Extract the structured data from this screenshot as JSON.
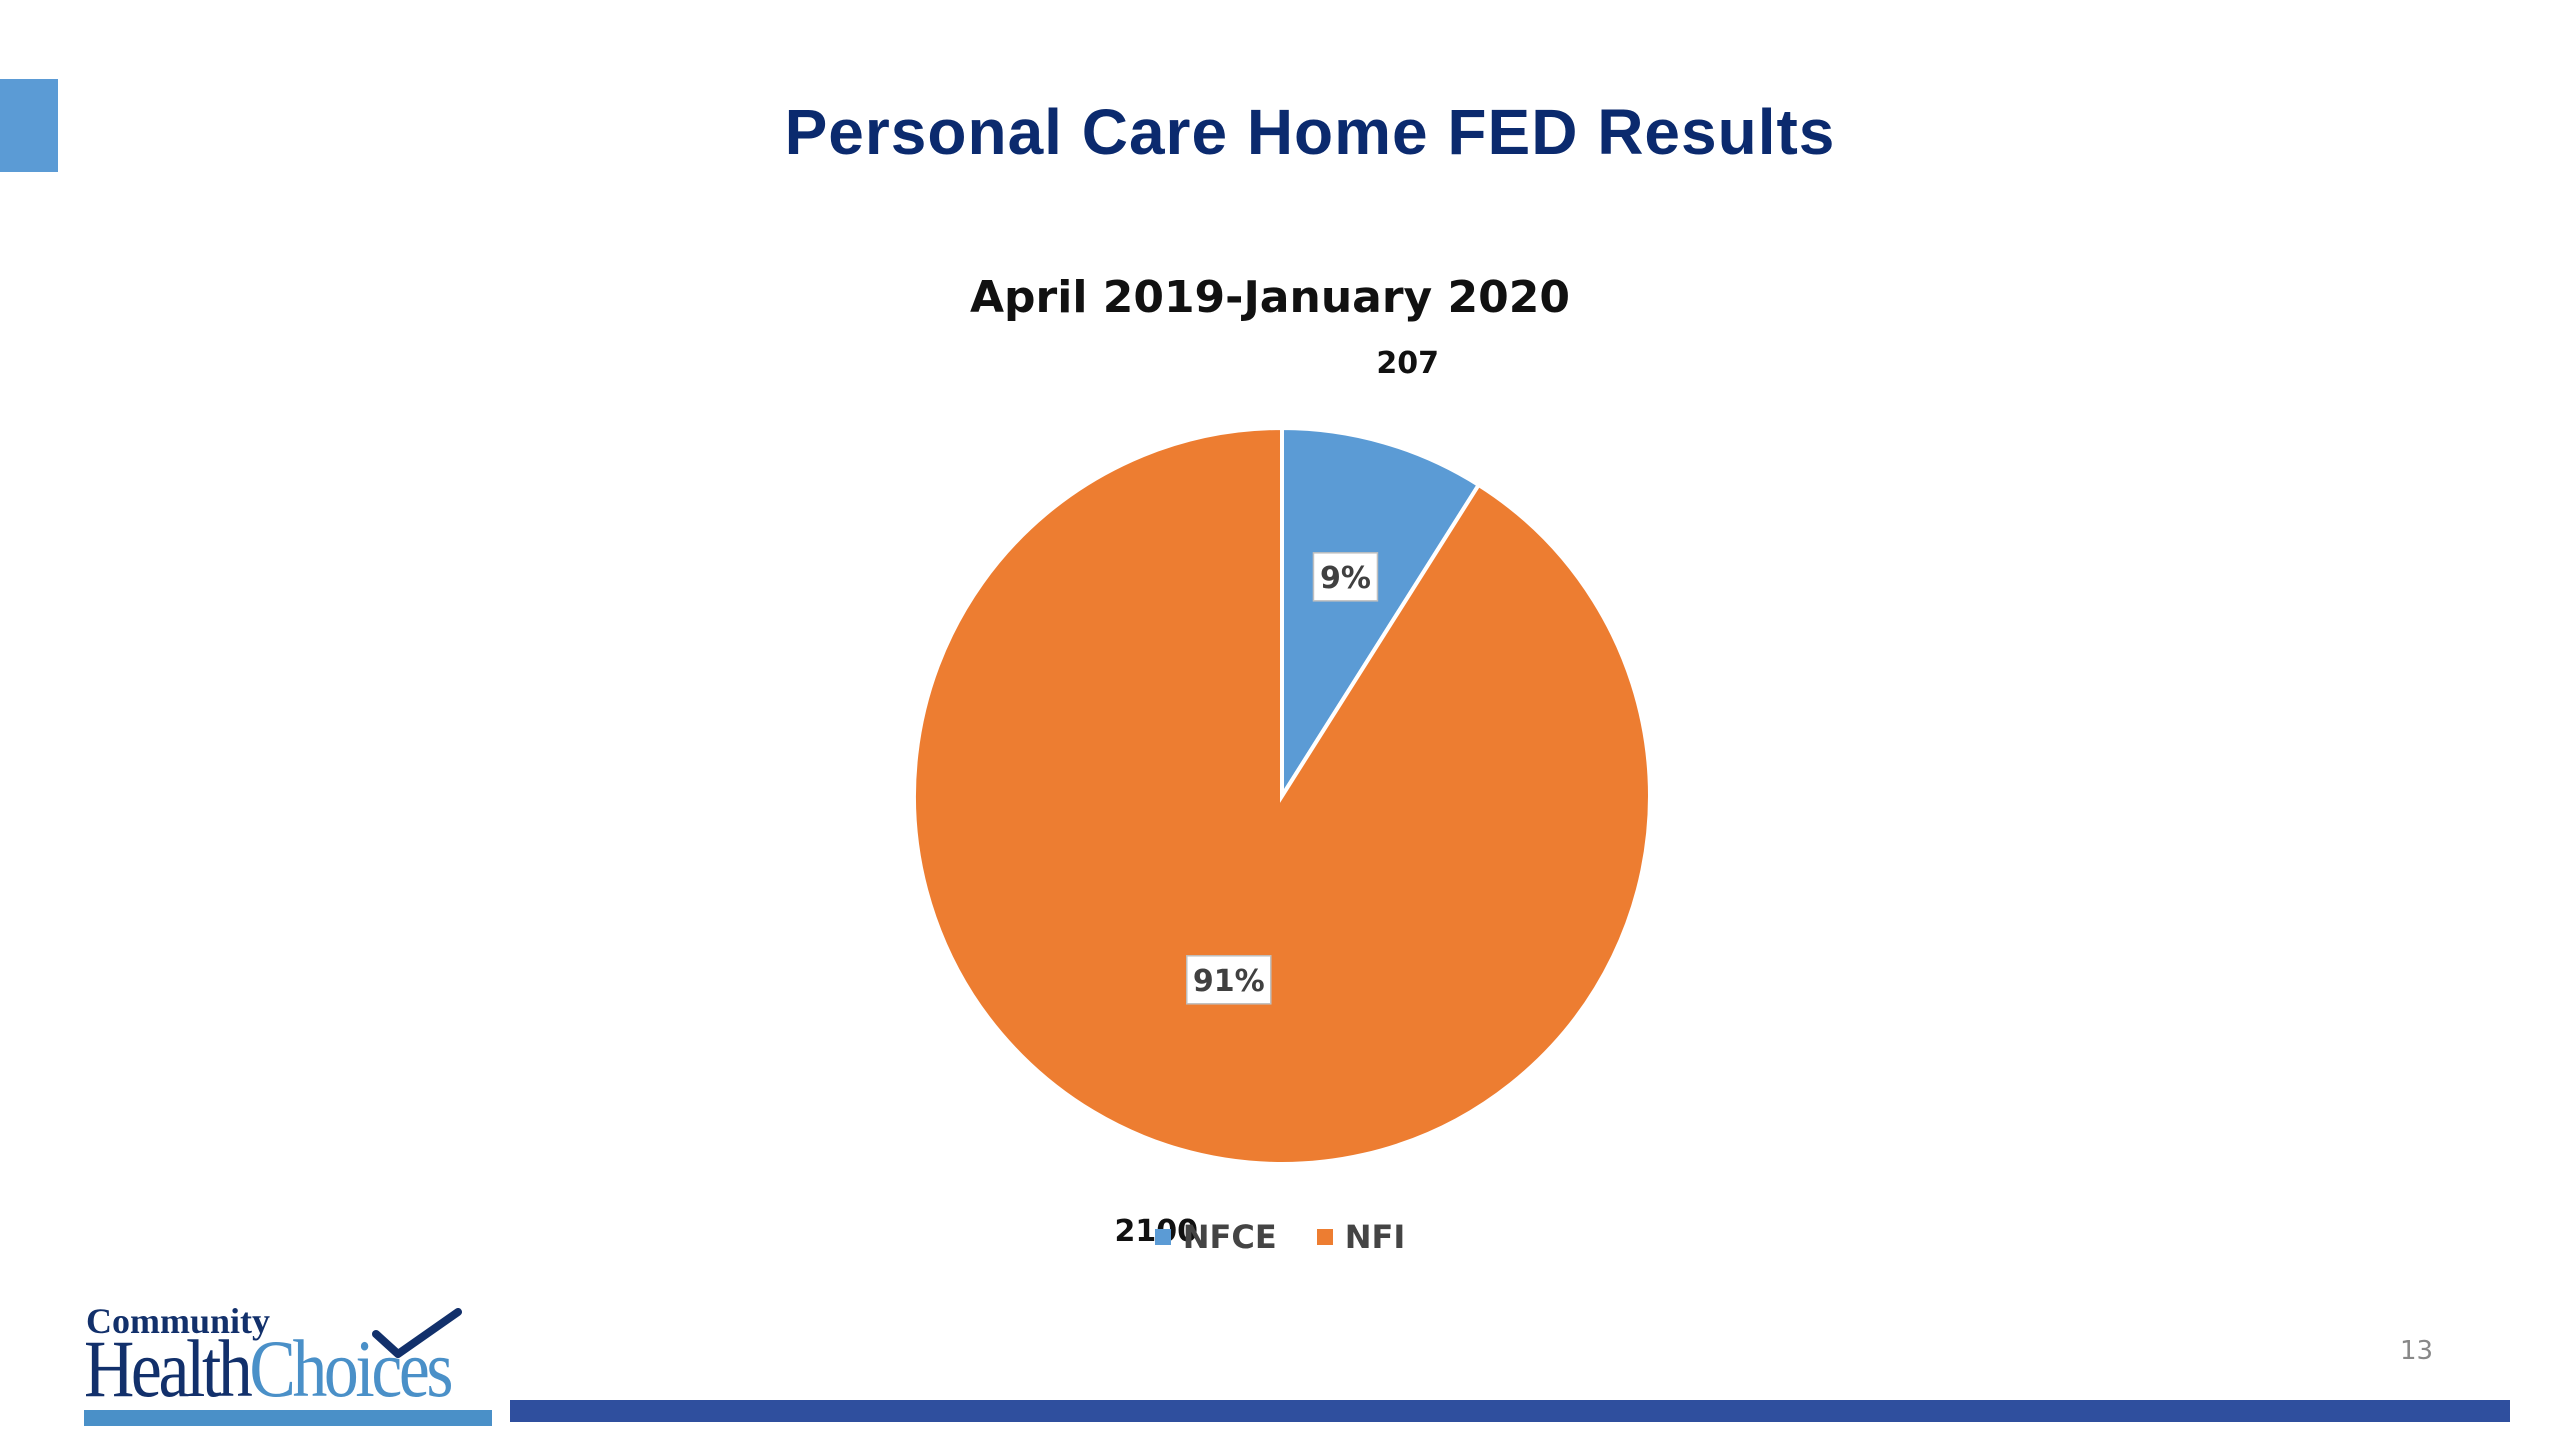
{
  "slide": {
    "title": "Personal Care Home FED Results",
    "page_number": "13"
  },
  "logo": {
    "line1": "Community",
    "health": "Health",
    "choices": "Choices"
  },
  "chart_data": {
    "type": "pie",
    "title": "April 2019-January 2020",
    "categories": [
      "NFCE",
      "NFI"
    ],
    "values": [
      207,
      2100
    ],
    "percent_labels": [
      "9%",
      "91%"
    ],
    "colors": [
      "#5b9bd5",
      "#ed7d31"
    ],
    "legend": {
      "placement": "bottom",
      "entries": [
        "NFCE",
        "NFI"
      ]
    }
  },
  "colors": {
    "title": "#0b2a6e",
    "accent": "#5b9bd5",
    "footer_bar": "#2f4f9e"
  }
}
